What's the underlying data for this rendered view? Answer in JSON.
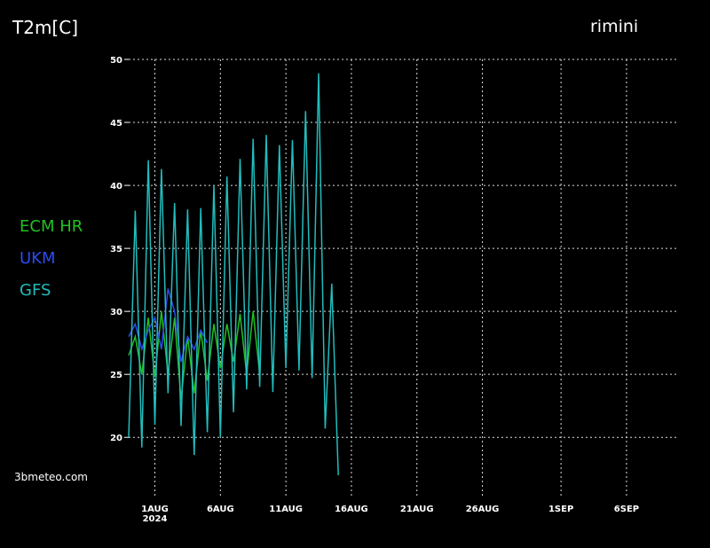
{
  "chart_data": {
    "type": "line",
    "title": "T2m[C]",
    "location": "rimini",
    "source": "3bmeteo.com",
    "x": [
      "2024-07-30T00:00",
      "2024-07-30T12:00",
      "2024-07-31T00:00",
      "2024-07-31T12:00",
      "2024-08-01T00:00",
      "2024-08-01T12:00",
      "2024-08-02T00:00",
      "2024-08-02T12:00",
      "2024-08-03T00:00",
      "2024-08-03T12:00",
      "2024-08-04T00:00",
      "2024-08-04T12:00",
      "2024-08-05T00:00",
      "2024-08-05T12:00",
      "2024-08-06T00:00",
      "2024-08-06T12:00",
      "2024-08-07T00:00",
      "2024-08-07T12:00",
      "2024-08-08T00:00",
      "2024-08-08T12:00",
      "2024-08-09T00:00",
      "2024-08-09T12:00",
      "2024-08-10T00:00",
      "2024-08-10T12:00",
      "2024-08-11T00:00",
      "2024-08-11T12:00",
      "2024-08-12T00:00",
      "2024-08-12T12:00",
      "2024-08-13T00:00",
      "2024-08-13T12:00",
      "2024-08-14T00:00",
      "2024-08-14T12:00",
      "2024-08-15T00:00"
    ],
    "series": [
      {
        "name": "ECM HR",
        "color": "#22c022",
        "values": [
          26.5,
          28,
          25,
          29.5,
          24.8,
          30,
          25,
          29.5,
          23,
          28,
          23.5,
          28.5,
          24.5,
          29,
          25.5,
          29,
          26,
          29.8,
          25,
          30,
          25,
          null,
          null,
          null,
          null,
          null,
          null,
          null,
          null,
          null,
          null,
          null,
          null
        ]
      },
      {
        "name": "UKM",
        "color": "#2a4cf0",
        "values": [
          28,
          29,
          27,
          28.5,
          29.5,
          27,
          31.8,
          30,
          26,
          28,
          27,
          28.5,
          27.5,
          null,
          null,
          null,
          null,
          null,
          null,
          null,
          null,
          null,
          null,
          null,
          null,
          null,
          null,
          null,
          null,
          null,
          null,
          null,
          null
        ]
      },
      {
        "name": "GFS",
        "color": "#22bcbc",
        "values": [
          20,
          38,
          19.2,
          42,
          21,
          41.3,
          23.5,
          38.6,
          20.9,
          38.1,
          18.6,
          38.2,
          20.4,
          40,
          20,
          40.7,
          22,
          42.1,
          23.8,
          43.7,
          24,
          44,
          23.6,
          43.2,
          25.5,
          43.6,
          25.3,
          45.9,
          24.7,
          48.9,
          20.7,
          32.2,
          17
        ]
      }
    ],
    "xlim": [
      "2024-07-30T00:00",
      "2024-09-10T00:00"
    ],
    "xticks": [
      {
        "value": "2024-08-01T00:00",
        "label": "1AUG"
      },
      {
        "value": "2024-08-06T00:00",
        "label": "6AUG"
      },
      {
        "value": "2024-08-11T00:00",
        "label": "11AUG"
      },
      {
        "value": "2024-08-16T00:00",
        "label": "16AUG"
      },
      {
        "value": "2024-08-21T00:00",
        "label": "21AUG"
      },
      {
        "value": "2024-08-26T00:00",
        "label": "26AUG"
      },
      {
        "value": "2024-09-01T00:00",
        "label": "1SEP"
      },
      {
        "value": "2024-09-06T00:00",
        "label": "6SEP"
      }
    ],
    "x_year_label": "2024",
    "ylim": [
      15.3,
      50
    ],
    "yticks": [
      20,
      25,
      30,
      35,
      40,
      45,
      50
    ],
    "grid": true
  }
}
